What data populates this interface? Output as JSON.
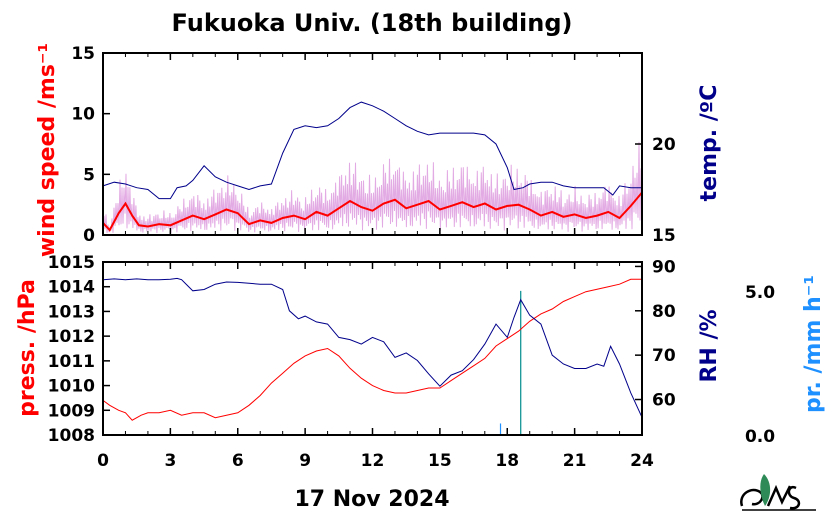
{
  "title": "Fukuoka Univ. (18th building)",
  "xlabel": "17 Nov 2024",
  "colors": {
    "red": "#ff0000",
    "navy": "#00008b",
    "magenta": "#cc66cc",
    "teal": "#008b8b",
    "blue": "#1e90ff",
    "green": "#2e8b57"
  },
  "icons": {
    "logo": "fukuoka-univ-logo"
  },
  "chart_data": [
    {
      "type": "line",
      "panel": "top",
      "xlim": [
        0,
        24
      ],
      "xticks": [
        0,
        3,
        6,
        9,
        12,
        15,
        18,
        21,
        24
      ],
      "left_axis": {
        "label": "wind speed /ms⁻¹",
        "ylim": [
          0,
          15
        ],
        "ticks": [
          0,
          5,
          10,
          15
        ]
      },
      "right_axis": {
        "label": "temp. /ºC",
        "ylim": [
          15,
          25
        ],
        "ticks": [
          15,
          20
        ]
      },
      "series": [
        {
          "axis": "left",
          "color": "#ff0000",
          "x": [
            0,
            0.3,
            0.7,
            1,
            1.3,
            1.6,
            2,
            2.5,
            3,
            3.5,
            4,
            4.5,
            5,
            5.5,
            6,
            6.5,
            7,
            7.5,
            8,
            8.5,
            9,
            9.5,
            10,
            10.5,
            11,
            11.5,
            12,
            12.5,
            13,
            13.5,
            14,
            14.5,
            15,
            15.5,
            16,
            16.5,
            17,
            17.5,
            18,
            18.5,
            19,
            19.5,
            20,
            20.5,
            21,
            21.5,
            22,
            22.5,
            23,
            23.5,
            24
          ],
          "y": [
            1.0,
            0.4,
            1.8,
            2.6,
            1.6,
            0.8,
            0.7,
            0.9,
            0.8,
            1.2,
            1.6,
            1.3,
            1.7,
            2.1,
            1.8,
            0.9,
            1.2,
            1.0,
            1.4,
            1.6,
            1.3,
            1.9,
            1.6,
            2.2,
            2.8,
            2.3,
            2.0,
            2.6,
            2.9,
            2.2,
            2.5,
            2.8,
            2.1,
            2.4,
            2.7,
            2.3,
            2.6,
            2.1,
            2.4,
            2.5,
            2.1,
            1.6,
            1.9,
            1.5,
            1.7,
            1.4,
            1.6,
            1.9,
            1.4,
            2.4,
            3.5
          ]
        },
        {
          "axis": "right",
          "color": "#00008b",
          "x": [
            0,
            0.5,
            1,
            1.5,
            2,
            2.5,
            3,
            3.3,
            3.7,
            4,
            4.5,
            5,
            5.5,
            6,
            6.5,
            7,
            7.5,
            8,
            8.5,
            9,
            9.5,
            10,
            10.5,
            11,
            11.5,
            12,
            12.5,
            13,
            13.5,
            14,
            14.5,
            15,
            15.5,
            16,
            16.5,
            17,
            17.5,
            18,
            18.3,
            18.7,
            19,
            19.5,
            20,
            20.5,
            21,
            21.5,
            22,
            22.3,
            22.7,
            23,
            23.5,
            24
          ],
          "y": [
            17.7,
            17.9,
            17.8,
            17.6,
            17.5,
            17.0,
            17.0,
            17.6,
            17.7,
            18.0,
            18.8,
            18.2,
            17.9,
            17.7,
            17.5,
            17.7,
            17.8,
            19.5,
            20.8,
            21.0,
            20.9,
            21.0,
            21.4,
            22.0,
            22.3,
            22.1,
            21.8,
            21.4,
            21.0,
            20.7,
            20.5,
            20.6,
            20.6,
            20.6,
            20.6,
            20.5,
            20.0,
            18.7,
            17.5,
            17.6,
            17.8,
            17.9,
            17.9,
            17.7,
            17.6,
            17.6,
            17.6,
            17.6,
            17.2,
            17.7,
            17.6,
            17.6
          ]
        }
      ]
    },
    {
      "type": "line",
      "panel": "bottom",
      "xlim": [
        0,
        24
      ],
      "xticks": [
        0,
        3,
        6,
        9,
        12,
        15,
        18,
        21,
        24
      ],
      "xticklabels": [
        "0",
        "3",
        "6",
        "9",
        "12",
        "15",
        "18",
        "21",
        "24"
      ],
      "left_axis": {
        "label": "press. /hPa",
        "ylim": [
          1008,
          1015
        ],
        "ticks": [
          1008,
          1009,
          1010,
          1011,
          1012,
          1013,
          1014,
          1015
        ]
      },
      "right_axis": {
        "label": "RH /%",
        "ylim": [
          52,
          91
        ],
        "ticks": [
          60,
          70,
          80,
          90
        ]
      },
      "rain_axis": {
        "label": "pr. /mm h⁻¹",
        "ticks": [
          "0.0",
          "5.0"
        ],
        "ylim": [
          0,
          6
        ]
      },
      "series": [
        {
          "axis": "left",
          "color": "#ff0000",
          "x": [
            0,
            0.3,
            0.7,
            1,
            1.3,
            1.7,
            2,
            2.5,
            3,
            3.5,
            4,
            4.5,
            5,
            5.5,
            6,
            6.5,
            7,
            7.5,
            8,
            8.5,
            9,
            9.5,
            10,
            10.5,
            11,
            11.5,
            12,
            12.5,
            13,
            13.5,
            14,
            14.5,
            15,
            15.5,
            16,
            16.5,
            17,
            17.5,
            18,
            18.5,
            19,
            19.5,
            20,
            20.5,
            21,
            21.5,
            22,
            22.5,
            23,
            23.5,
            24
          ],
          "y": [
            1009.4,
            1009.2,
            1009.0,
            1008.9,
            1008.6,
            1008.8,
            1008.9,
            1008.9,
            1009.0,
            1008.8,
            1008.9,
            1008.9,
            1008.7,
            1008.8,
            1008.9,
            1009.2,
            1009.6,
            1010.1,
            1010.5,
            1010.9,
            1011.2,
            1011.4,
            1011.5,
            1011.2,
            1010.7,
            1010.3,
            1010.0,
            1009.8,
            1009.7,
            1009.7,
            1009.8,
            1009.9,
            1009.9,
            1010.2,
            1010.5,
            1010.8,
            1011.1,
            1011.6,
            1011.9,
            1012.2,
            1012.6,
            1012.9,
            1013.1,
            1013.4,
            1013.6,
            1013.8,
            1013.9,
            1014.0,
            1014.1,
            1014.3,
            1014.3
          ]
        },
        {
          "axis": "right",
          "color": "#00008b",
          "x": [
            0,
            0.5,
            1,
            1.5,
            2,
            2.5,
            3,
            3.3,
            3.5,
            3.8,
            4,
            4.5,
            5,
            5.5,
            6,
            6.5,
            7,
            7.5,
            8,
            8.3,
            8.7,
            9,
            9.5,
            10,
            10.5,
            11,
            11.5,
            12,
            12.5,
            13,
            13.5,
            14,
            14.5,
            15,
            15.5,
            16,
            16.5,
            17,
            17.5,
            18,
            18.3,
            18.6,
            19,
            19.5,
            20,
            20.5,
            21,
            21.5,
            22,
            22.3,
            22.6,
            23,
            23.5,
            24
          ],
          "y": [
            87.0,
            87.2,
            87.0,
            87.2,
            87.0,
            87.0,
            87.1,
            87.3,
            87.0,
            85.5,
            84.5,
            84.8,
            86.0,
            86.5,
            86.4,
            86.2,
            86.0,
            86.0,
            84.8,
            80.0,
            78.2,
            78.8,
            77.5,
            77.0,
            74.0,
            73.5,
            72.5,
            74.0,
            73.0,
            69.5,
            70.5,
            68.8,
            65.8,
            63.0,
            65.5,
            66.5,
            69.0,
            72.5,
            77.0,
            74.0,
            78.5,
            82.5,
            79.0,
            77.0,
            70.0,
            68.0,
            67.0,
            67.0,
            68.0,
            67.5,
            72.0,
            68.0,
            61.5,
            56.0
          ]
        },
        {
          "axis": "rain",
          "color": "#008b8b",
          "type": "bar",
          "x": [
            17.7,
            18.6
          ],
          "y": [
            0.4,
            5.0
          ]
        }
      ]
    }
  ]
}
